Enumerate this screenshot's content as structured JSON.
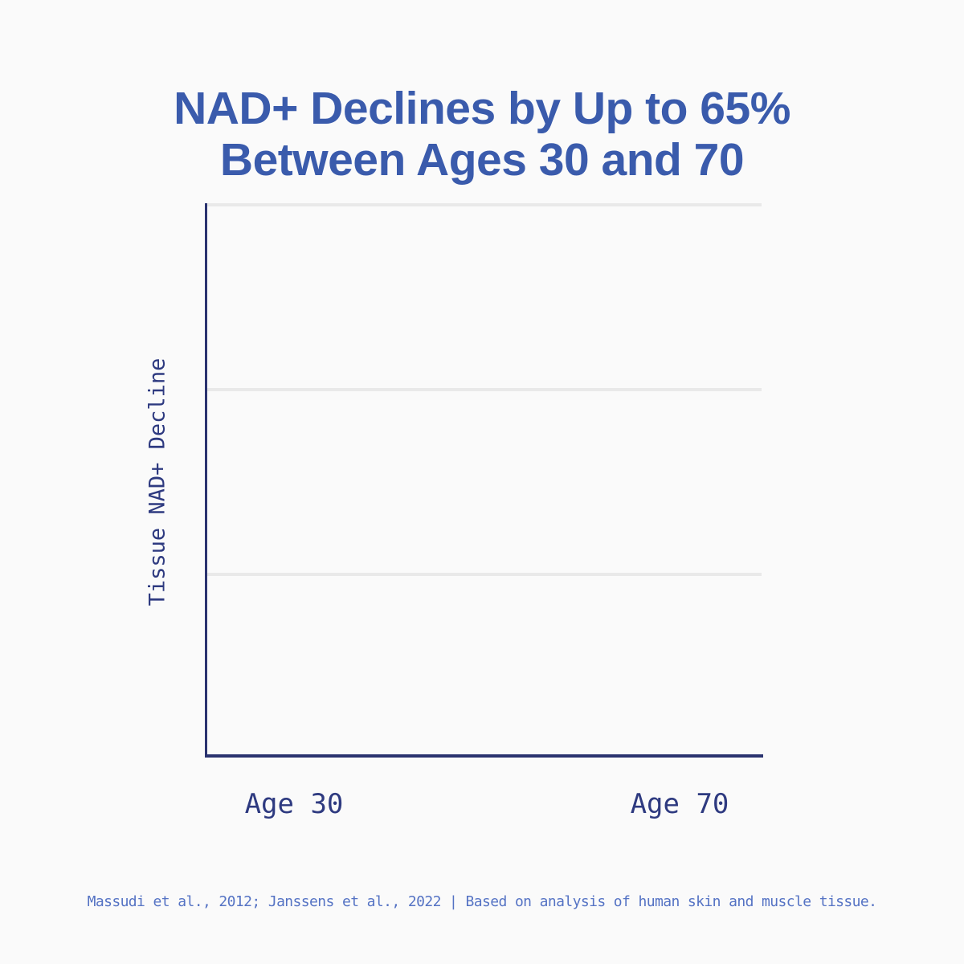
{
  "colors": {
    "background": "#fafafa",
    "title_color": "#3a5bac",
    "axis_color": "#2a336f",
    "tick_color": "#2e3a80",
    "gridline_color": "#e9e9e9",
    "footnote_color": "#5573c4"
  },
  "title": {
    "line1": "NAD+ Declines by Up to 65%",
    "line2": "Between Ages 30 and 70"
  },
  "chart": {
    "y_axis_label": "Tissue NAD+ Decline",
    "x_ticks": [
      "Age 30",
      "Age 70"
    ]
  },
  "footnote": {
    "text": "Massudi et al., 2012; Janssens et al., 2022 | Based on analysis of human skin and muscle tissue."
  },
  "chart_data": {
    "type": "line",
    "title": "NAD+ Declines by Up to 65% Between Ages 30 and 70",
    "xlabel": "",
    "ylabel": "Tissue NAD+ Decline",
    "categories": [
      "Age 30",
      "Age 70"
    ],
    "series": [],
    "plotted_points_visible": false,
    "implied_max_decline_percent": 65,
    "gridlines": {
      "horizontal_count": 3,
      "vertical_count": 0
    },
    "legend_position": "none",
    "axes": {
      "y_tick_labels_visible": false,
      "x_tick_labels_visible": true
    }
  }
}
